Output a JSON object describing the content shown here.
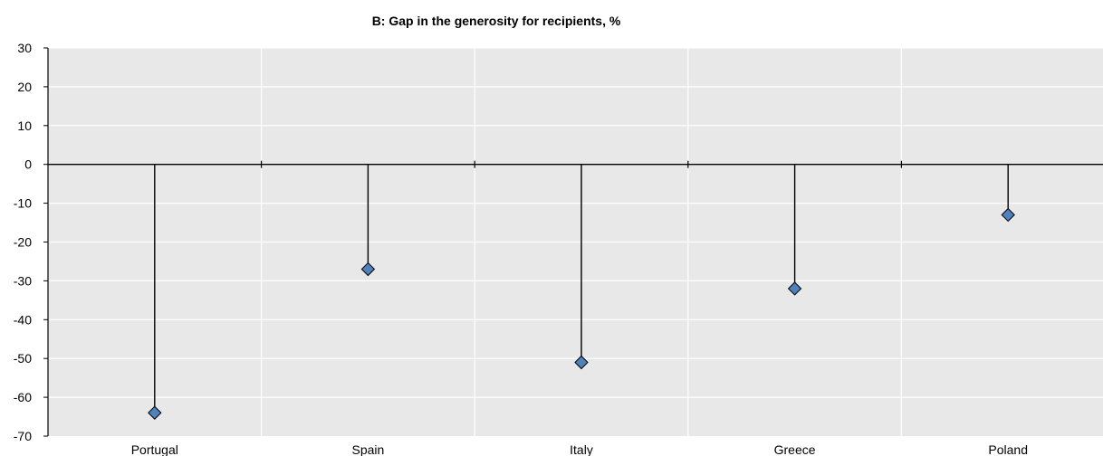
{
  "chart_data": {
    "type": "scatter",
    "title": "B: Gap in the generosity for recipients, %",
    "categories": [
      "Portugal",
      "Spain",
      "Italy",
      "Greece",
      "Poland"
    ],
    "values": [
      -64,
      -27,
      -51,
      -32,
      -13
    ],
    "ylim": [
      -70,
      30
    ],
    "yticks": [
      30,
      20,
      10,
      0,
      -10,
      -20,
      -30,
      -40,
      -50,
      -60,
      -70
    ],
    "marker": "diamond-with-stem-from-zero",
    "grid": true,
    "colors": {
      "plot_background": "#e8e8e8",
      "gridline": "#ffffff",
      "marker_fill": "#4f81bd",
      "marker_stroke": "#000000",
      "stem": "#000000",
      "axis": "#000000"
    }
  }
}
